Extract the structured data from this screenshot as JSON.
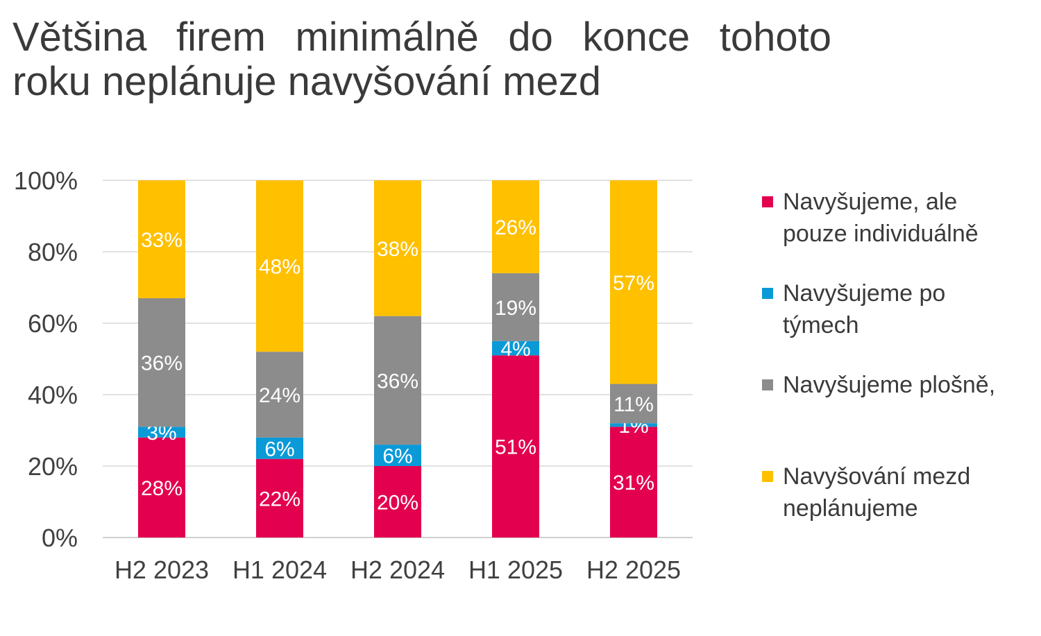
{
  "title_line1": "Většina firem minimálně do konce tohoto",
  "title_line2": "roku neplánuje navyšování mezd",
  "chart_data": {
    "type": "bar",
    "stacked": true,
    "categories": [
      "H2 2023",
      "H1 2024",
      "H2 2024",
      "H1 2025",
      "H2 2025"
    ],
    "series": [
      {
        "name": "Navyšujeme, ale pouze individuálně",
        "color": "#E3004F",
        "values": [
          28,
          22,
          20,
          51,
          31
        ],
        "labels": [
          "28%",
          "22%",
          "20%",
          "51%",
          "31%"
        ]
      },
      {
        "name": "Navyšujeme po týmech",
        "color": "#0A9AD7",
        "values": [
          3,
          6,
          6,
          4,
          1
        ],
        "labels": [
          "3%",
          "6%",
          "6%",
          "4%",
          "1%"
        ]
      },
      {
        "name": "Navyšujeme plošně,",
        "color": "#8C8C8C",
        "values": [
          36,
          24,
          36,
          19,
          11
        ],
        "labels": [
          "36%",
          "24%",
          "36%",
          "19%",
          "11%"
        ]
      },
      {
        "name": "Navyšování mezd neplánujeme",
        "color": "#FFC000",
        "values": [
          33,
          48,
          38,
          26,
          57
        ],
        "labels": [
          "33%",
          "48%",
          "38%",
          "26%",
          "57%"
        ]
      }
    ],
    "y_ticks": [
      "0%",
      "20%",
      "40%",
      "60%",
      "80%",
      "100%"
    ],
    "ylim": [
      0,
      100
    ],
    "grid": true,
    "legend_position": "right"
  },
  "legend": [
    {
      "label": "Navyšujeme, ale\npouze individuálně",
      "color": "#E3004F"
    },
    {
      "label": "Navyšujeme po\ntýmech",
      "color": "#0A9AD7"
    },
    {
      "label": "Navyšujeme plošně,",
      "color": "#8C8C8C"
    },
    {
      "label": "Navyšování mezd\nneplánujeme",
      "color": "#FFC000"
    }
  ]
}
